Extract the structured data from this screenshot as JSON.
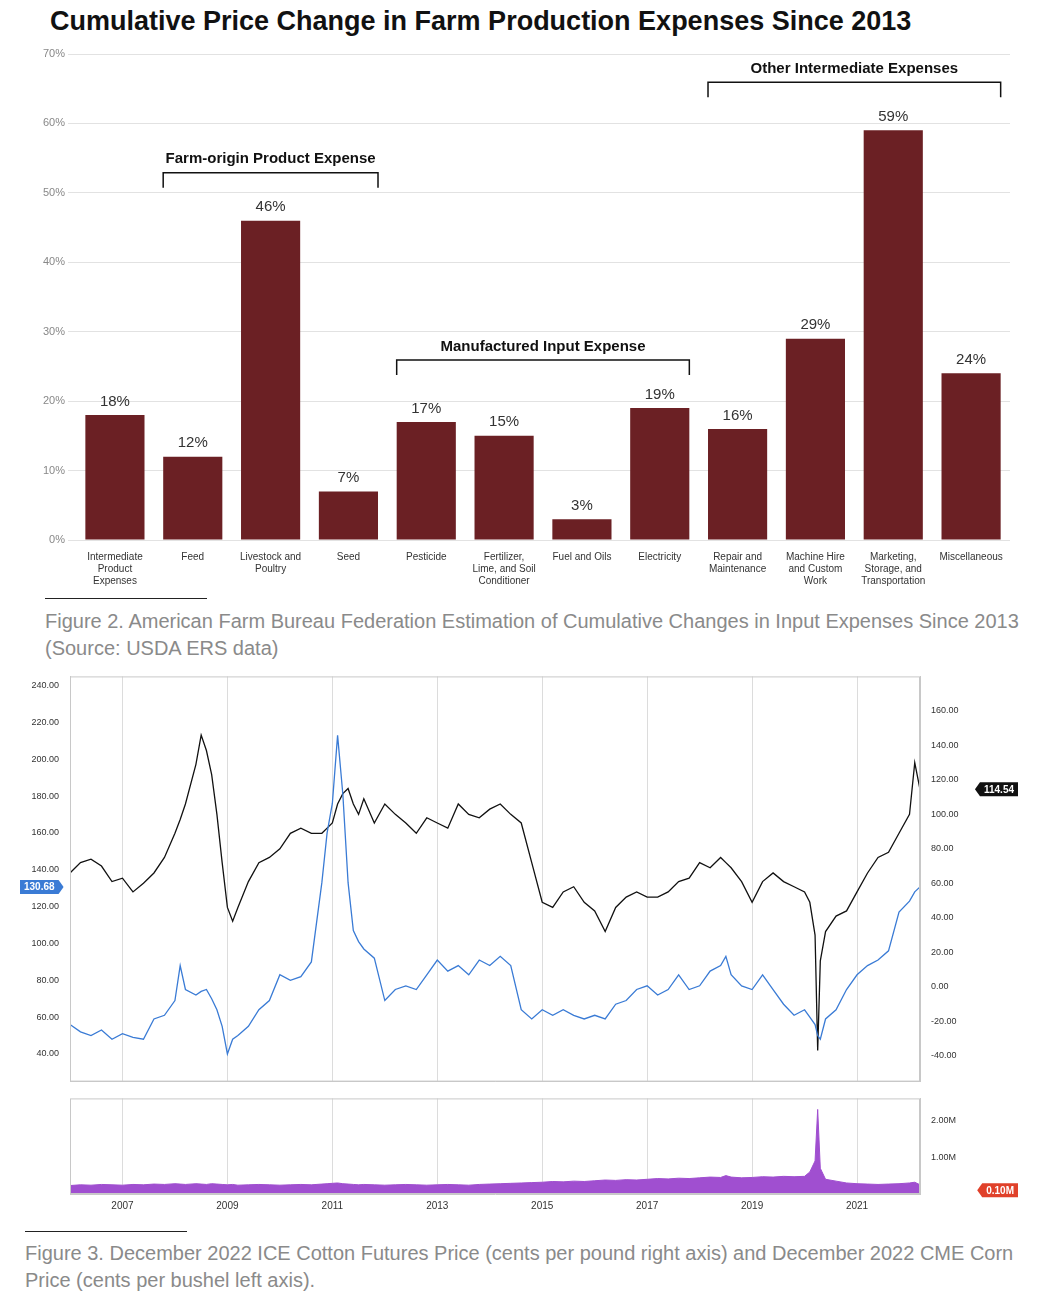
{
  "chart_data": [
    {
      "type": "bar",
      "title": "Cumulative Price Change in Farm Production Expenses Since 2013",
      "caption": "Figure 2. American Farm Bureau Federation Estimation of Cumulative Changes in Input Expenses Since 2013 (Source: USDA ERS data)",
      "categories": [
        "Intermediate Product Expenses",
        "Feed",
        "Livestock and Poultry",
        "Seed",
        "Pesticide",
        "Fertilizer, Lime, and Soil Conditioner",
        "Fuel and Oils",
        "Electricity",
        "Repair and Maintenance",
        "Machine Hire and Custom Work",
        "Marketing, Storage, and Transportation",
        "Miscellaneous"
      ],
      "values": [
        18,
        12,
        46,
        7,
        17,
        15,
        3,
        19,
        16,
        29,
        59,
        24
      ],
      "value_labels": [
        "18%",
        "12%",
        "46%",
        "7%",
        "17%",
        "15%",
        "3%",
        "19%",
        "16%",
        "29%",
        "59%",
        "24%"
      ],
      "color": "#6b2024",
      "ylim": [
        0,
        70
      ],
      "yticks": [
        {
          "value": 0,
          "label": "0%"
        },
        {
          "value": 10,
          "label": "10%"
        },
        {
          "value": 20,
          "label": "20%"
        },
        {
          "value": 30,
          "label": "30%"
        },
        {
          "value": 40,
          "label": "40%"
        },
        {
          "value": 50,
          "label": "50%"
        },
        {
          "value": 60,
          "label": "60%"
        },
        {
          "value": 70,
          "label": "70%"
        }
      ],
      "grid": "y",
      "data_labels": true,
      "annotations": [
        {
          "text": "Farm-origin Product Expense",
          "from": "Feed",
          "to": "Seed"
        },
        {
          "text": "Manufactured Input Expense",
          "from": "Pesticide",
          "to": "Electricity"
        },
        {
          "text": "Other Intermediate Expenses",
          "from": "Repair and Maintenance",
          "to": "Miscellaneous"
        }
      ]
    },
    {
      "type": "line",
      "caption": "Figure 3. December 2022 ICE Cotton Futures Price (cents per pound right axis) and December 2022 CME Corn Price (cents per bushel left axis).",
      "x": [
        2006,
        2006.2,
        2006.4,
        2006.6,
        2006.8,
        2007,
        2007.2,
        2007.4,
        2007.6,
        2007.8,
        2008,
        2008.1,
        2008.2,
        2008.4,
        2008.5,
        2008.6,
        2008.7,
        2008.8,
        2008.9,
        2009,
        2009.1,
        2009.2,
        2009.4,
        2009.6,
        2009.8,
        2010,
        2010.2,
        2010.4,
        2010.6,
        2010.8,
        2010.9,
        2011,
        2011.1,
        2011.2,
        2011.3,
        2011.4,
        2011.5,
        2011.6,
        2011.8,
        2012,
        2012.2,
        2012.4,
        2012.6,
        2012.8,
        2013,
        2013.2,
        2013.4,
        2013.6,
        2013.8,
        2014,
        2014.2,
        2014.4,
        2014.6,
        2014.8,
        2015,
        2015.2,
        2015.4,
        2015.6,
        2015.8,
        2016,
        2016.2,
        2016.4,
        2016.6,
        2016.8,
        2017,
        2017.2,
        2017.4,
        2017.6,
        2017.8,
        2018,
        2018.2,
        2018.4,
        2018.5,
        2018.6,
        2018.8,
        2019,
        2019.2,
        2019.4,
        2019.6,
        2019.8,
        2020,
        2020.1,
        2020.2,
        2020.25,
        2020.3,
        2020.4,
        2020.6,
        2020.8,
        2021,
        2021.2,
        2021.4,
        2021.6,
        2021.8,
        2022,
        2022.1,
        2022.2
      ],
      "series": [
        {
          "color": "#3a7bd5",
          "axis": "y",
          "values": [
            56,
            52,
            50,
            53,
            48,
            51,
            49,
            48,
            59,
            61,
            69,
            88,
            75,
            72,
            74,
            75,
            70,
            64,
            55,
            40,
            48,
            50,
            55,
            64,
            69,
            83,
            80,
            82,
            90,
            133,
            160,
            176,
            213,
            181,
            133,
            107,
            101,
            97,
            92,
            69,
            75,
            77,
            75,
            83,
            91,
            85,
            88,
            83,
            91,
            88,
            93,
            88,
            64,
            59,
            64,
            61,
            64,
            61,
            59,
            61,
            59,
            67,
            69,
            75,
            77,
            72,
            75,
            83,
            75,
            77,
            85,
            88,
            93,
            83,
            77,
            75,
            83,
            75,
            67,
            61,
            64,
            60,
            56,
            50,
            48,
            59,
            64,
            75,
            83,
            88,
            91,
            96,
            117,
            123,
            128,
            130.68
          ]
        },
        {
          "color": "#111111",
          "axis": "y2",
          "values": [
            66,
            72,
            74,
            70,
            61,
            63,
            55,
            60,
            66,
            75,
            89,
            97,
            106,
            129,
            146,
            137,
            123,
            100,
            72,
            46,
            38,
            46,
            61,
            72,
            75,
            80,
            89,
            92,
            89,
            89,
            92,
            95,
            106,
            112,
            115,
            106,
            100,
            109,
            95,
            106,
            100,
            95,
            89,
            98,
            95,
            92,
            106,
            100,
            98,
            103,
            106,
            100,
            95,
            72,
            49,
            46,
            55,
            58,
            49,
            44,
            32,
            46,
            52,
            55,
            52,
            52,
            55,
            61,
            63,
            72,
            69,
            75,
            72,
            69,
            61,
            49,
            61,
            66,
            61,
            58,
            55,
            49,
            30,
            -37,
            15,
            32,
            41,
            44,
            55,
            66,
            75,
            78,
            89,
            100,
            130,
            114.54
          ]
        }
      ],
      "xlim": [
        2006,
        2022.2
      ],
      "xticks": [
        2007,
        2009,
        2011,
        2013,
        2015,
        2017,
        2019,
        2021
      ],
      "ylim": [
        25,
        245
      ],
      "yticks": [
        {
          "value": 40,
          "label": "40.00"
        },
        {
          "value": 60,
          "label": "60.00"
        },
        {
          "value": 80,
          "label": "80.00"
        },
        {
          "value": 100,
          "label": "100.00"
        },
        {
          "value": 120,
          "label": "120.00"
        },
        {
          "value": 140,
          "label": "140.00"
        },
        {
          "value": 160,
          "label": "160.00"
        },
        {
          "value": 180,
          "label": "180.00"
        },
        {
          "value": 200,
          "label": "200.00"
        },
        {
          "value": 220,
          "label": "220.00"
        },
        {
          "value": 240,
          "label": "240.00"
        }
      ],
      "y2lim": [
        -55,
        180
      ],
      "y2ticks": [
        {
          "value": -40,
          "label": "-40.00"
        },
        {
          "value": -20,
          "label": "-20.00"
        },
        {
          "value": 0,
          "label": "0.00"
        },
        {
          "value": 20,
          "label": "20.00"
        },
        {
          "value": 40,
          "label": "40.00"
        },
        {
          "value": 60,
          "label": "60.00"
        },
        {
          "value": 80,
          "label": "80.00"
        },
        {
          "value": 100,
          "label": "100.00"
        },
        {
          "value": 120,
          "label": "120.00"
        },
        {
          "value": 140,
          "label": "140.00"
        },
        {
          "value": 160,
          "label": "160.00"
        }
      ],
      "grid": "x",
      "tick_labels": "y",
      "annotations": [
        {
          "text": "130.68",
          "axis": "y",
          "value": 130.68,
          "color": "#3a7bd5"
        },
        {
          "text": "114.54",
          "axis": "y2",
          "value": 114.54,
          "color": "#111111"
        }
      ]
    },
    {
      "type": "area",
      "x": [
        2006,
        2006.2,
        2006.4,
        2006.6,
        2006.8,
        2007,
        2007.2,
        2007.4,
        2007.6,
        2007.8,
        2008,
        2008.1,
        2008.2,
        2008.4,
        2008.5,
        2008.6,
        2008.7,
        2008.8,
        2008.9,
        2009,
        2009.1,
        2009.2,
        2009.4,
        2009.6,
        2009.8,
        2010,
        2010.2,
        2010.4,
        2010.6,
        2010.8,
        2010.9,
        2011,
        2011.1,
        2011.2,
        2011.3,
        2011.4,
        2011.5,
        2011.6,
        2011.8,
        2012,
        2012.2,
        2012.4,
        2012.6,
        2012.8,
        2013,
        2013.2,
        2013.4,
        2013.6,
        2013.8,
        2014,
        2014.2,
        2014.4,
        2014.6,
        2014.8,
        2015,
        2015.2,
        2015.4,
        2015.6,
        2015.8,
        2016,
        2016.2,
        2016.4,
        2016.6,
        2016.8,
        2017,
        2017.2,
        2017.4,
        2017.6,
        2017.8,
        2018,
        2018.2,
        2018.4,
        2018.5,
        2018.6,
        2018.8,
        2019,
        2019.2,
        2019.4,
        2019.6,
        2019.8,
        2020,
        2020.1,
        2020.2,
        2020.25,
        2020.3,
        2020.4,
        2020.6,
        2020.8,
        2021,
        2021.2,
        2021.4,
        2021.6,
        2021.8,
        2022,
        2022.1,
        2022.2
      ],
      "series": [
        {
          "color": "#a04fd0",
          "axis": "y2",
          "values": [
            230000,
            250000,
            240000,
            260000,
            250000,
            240000,
            260000,
            250000,
            270000,
            260000,
            280000,
            270000,
            260000,
            280000,
            270000,
            260000,
            280000,
            270000,
            260000,
            250000,
            260000,
            240000,
            250000,
            260000,
            250000,
            240000,
            250000,
            260000,
            250000,
            270000,
            280000,
            290000,
            300000,
            280000,
            270000,
            260000,
            250000,
            260000,
            250000,
            240000,
            250000,
            260000,
            250000,
            240000,
            250000,
            260000,
            250000,
            240000,
            260000,
            270000,
            280000,
            290000,
            300000,
            310000,
            320000,
            340000,
            330000,
            350000,
            340000,
            360000,
            380000,
            370000,
            390000,
            380000,
            400000,
            420000,
            410000,
            430000,
            420000,
            440000,
            460000,
            450000,
            500000,
            460000,
            440000,
            450000,
            470000,
            460000,
            480000,
            470000,
            480000,
            600000,
            900000,
            2300000,
            700000,
            400000,
            350000,
            300000,
            280000,
            270000,
            260000,
            270000,
            280000,
            300000,
            320000,
            250000
          ]
        }
      ],
      "xlim": [
        2006,
        2022.2
      ],
      "xticks": [
        2007,
        2009,
        2011,
        2013,
        2015,
        2017,
        2019,
        2021
      ],
      "y2lim": [
        0,
        2600000
      ],
      "y2ticks": [
        {
          "value": 1000000,
          "label": "1.00M"
        },
        {
          "value": 2000000,
          "label": "2.00M"
        }
      ],
      "grid": "x",
      "annotations": [
        {
          "text": "0.10M",
          "axis": "y2",
          "value": 100000,
          "color": "#e0412a"
        }
      ]
    }
  ]
}
